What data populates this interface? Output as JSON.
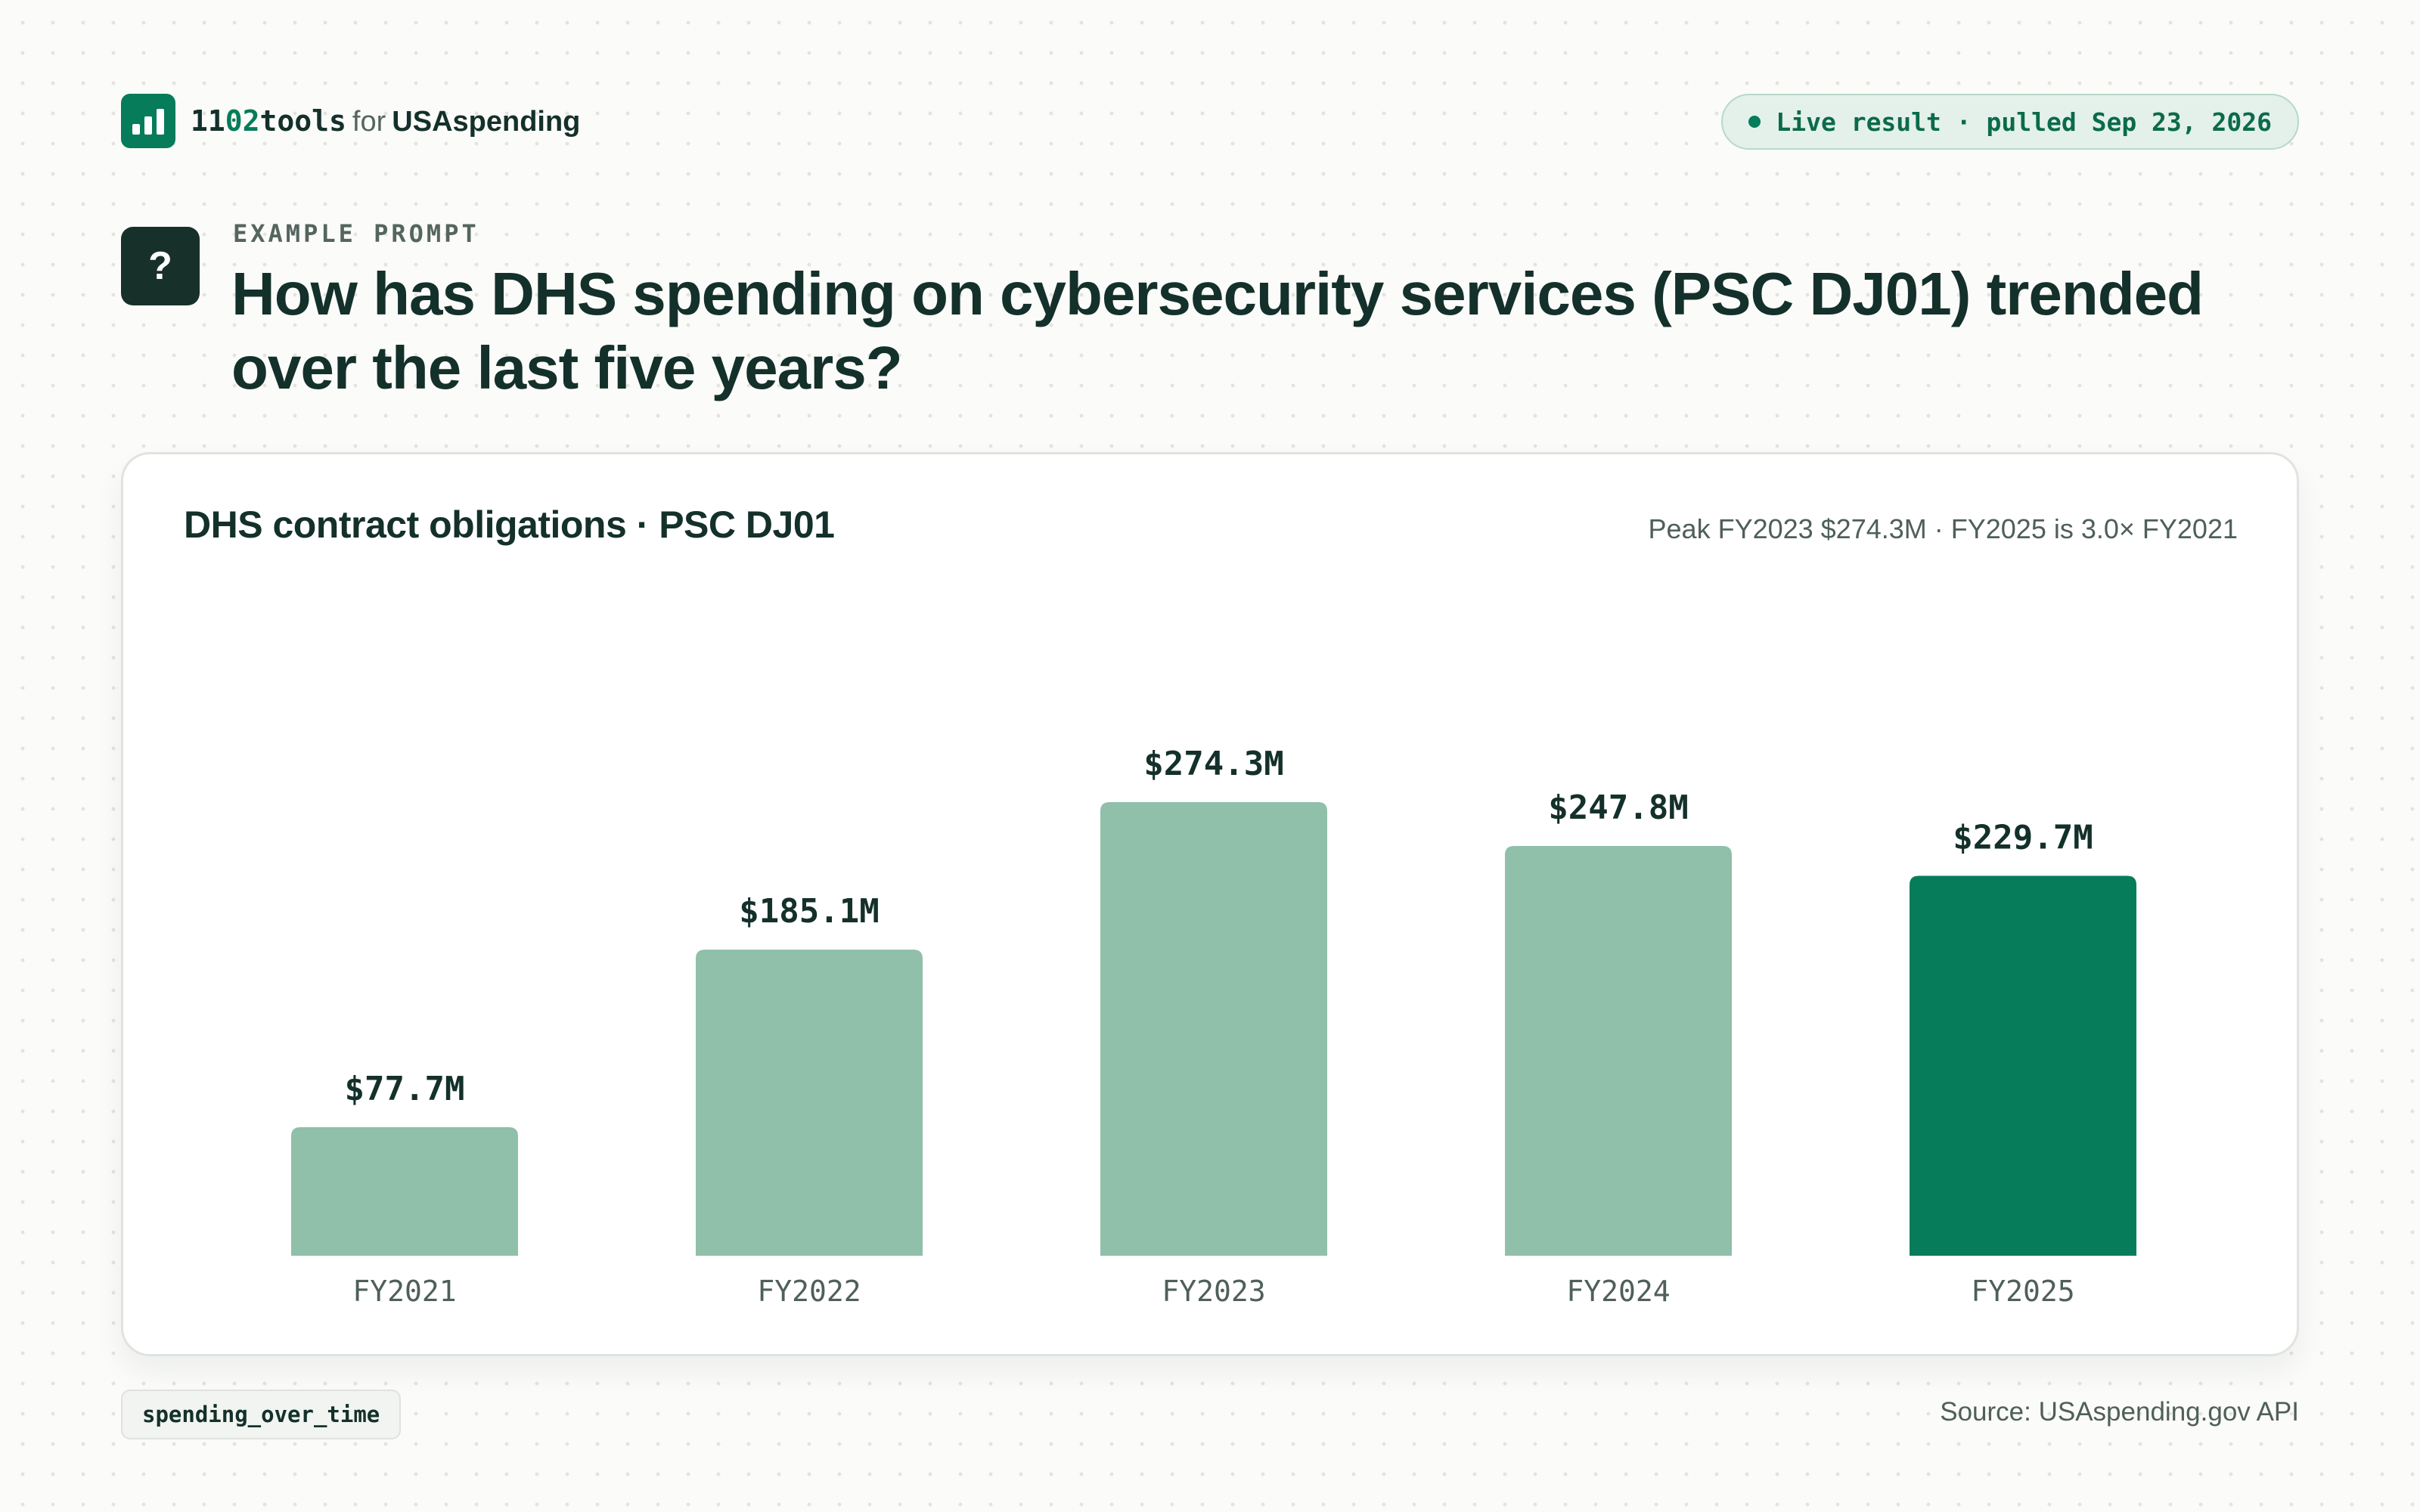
{
  "header": {
    "brand_prefix": "11",
    "brand_accent": "02",
    "brand_suffix": "tools",
    "brand_for": "for",
    "brand_target": "USAspending",
    "status": "Live result · pulled Sep 23, 2026",
    "logo_icon": "bar-chart-icon"
  },
  "prompt": {
    "badge": "?",
    "eyebrow": "EXAMPLE PROMPT",
    "question": "How has DHS spending on cybersecurity services (PSC DJ01) trended over the last five years?"
  },
  "card": {
    "title": "DHS contract obligations · PSC DJ01",
    "subtitle": "Peak FY2023 $274.3M · FY2025 is 3.0× FY2021"
  },
  "chart_data": {
    "type": "bar",
    "title": "DHS contract obligations · PSC DJ01",
    "categories": [
      "FY2021",
      "FY2022",
      "FY2023",
      "FY2024",
      "FY2025"
    ],
    "values": [
      77.7,
      185.1,
      274.3,
      247.8,
      229.7
    ],
    "value_labels": [
      "$77.7M",
      "$185.1M",
      "$274.3M",
      "$247.8M",
      "$229.7M"
    ],
    "unit": "$M",
    "ylim": [
      0,
      274.3
    ],
    "highlight_index": 4,
    "grid": false,
    "legend": "none",
    "colors": {
      "base": "#90bfaa",
      "highlight": "#067c5a",
      "label": "#14302a",
      "axis": "#4f5f59"
    }
  },
  "footer": {
    "tool_name": "spending_over_time",
    "source": "Source: USAspending.gov API"
  }
}
